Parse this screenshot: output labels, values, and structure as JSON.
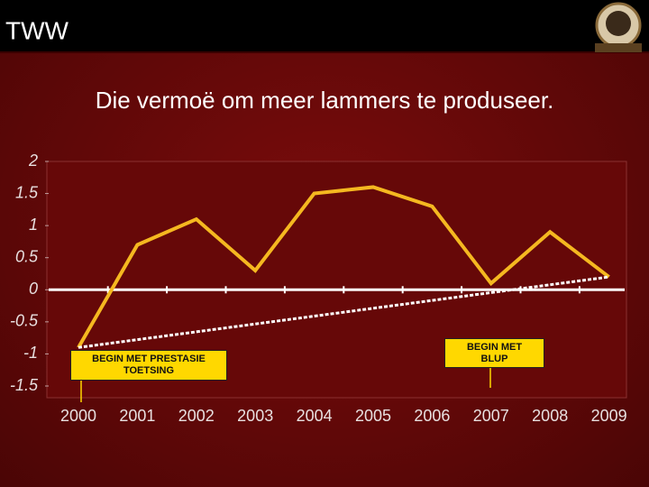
{
  "header": {
    "title": "TWW"
  },
  "chart_data": {
    "type": "line",
    "title": "Die vermoë om meer lammers te produseer.",
    "categories": [
      "2000",
      "2001",
      "2002",
      "2003",
      "2004",
      "2005",
      "2006",
      "2007",
      "2008",
      "2009"
    ],
    "values": [
      -0.9,
      0.7,
      1.1,
      0.3,
      1.5,
      1.6,
      1.3,
      0.1,
      0.9,
      0.2
    ],
    "color": "#f5b820",
    "trend": {
      "values": [
        -0.9,
        0.2
      ],
      "color": "#ffffff"
    },
    "ylim": [
      -1.5,
      2
    ],
    "yticks": [
      2,
      1.5,
      1,
      0.5,
      0,
      -0.5,
      -1,
      -1.5
    ],
    "grid": false,
    "annotations": [
      {
        "text": "BEGIN MET PRESTASIE TOETSING"
      },
      {
        "text": "BEGIN MET BLUP"
      }
    ]
  }
}
